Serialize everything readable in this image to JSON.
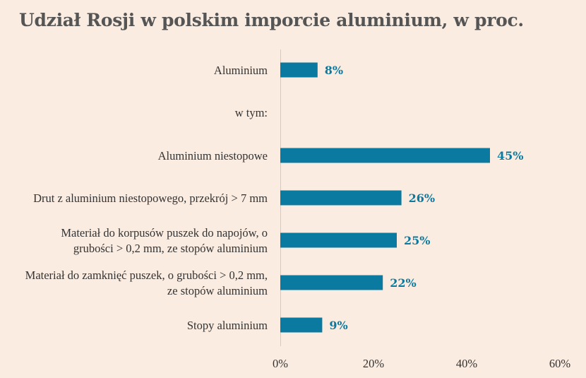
{
  "title": "Udział Rosji w polskim imporcie aluminium, w proc.",
  "colors": {
    "bar": "#0b7aa0",
    "label": "#0b7aa0",
    "background": "#fbece1",
    "axis": "#cccccc"
  },
  "chart_data": {
    "type": "bar",
    "orientation": "horizontal",
    "title": "Udział Rosji w polskim imporcie aluminium, w proc.",
    "xlim": [
      0,
      60
    ],
    "x_ticks": [
      "0%",
      "20%",
      "40%",
      "60%"
    ],
    "x_tick_values": [
      0,
      20,
      40,
      60
    ],
    "grid": false,
    "categories": [
      {
        "lines": [
          "Aluminium"
        ],
        "value": 8,
        "label": "8%"
      },
      {
        "lines": [
          "w tym:"
        ],
        "value": null,
        "label": ""
      },
      {
        "lines": [
          "Aluminium niestopowe"
        ],
        "value": 45,
        "label": "45%"
      },
      {
        "lines": [
          "Drut z aluminium niestopowego, przekrój > 7 mm"
        ],
        "value": 26,
        "label": "26%"
      },
      {
        "lines": [
          "Materiał do korpusów puszek do napojów, o",
          "grubości > 0,2 mm, ze stopów aluminium"
        ],
        "value": 25,
        "label": "25%"
      },
      {
        "lines": [
          "Materiał do zamknięć puszek, o grubości > 0,2 mm,",
          "ze stopów aluminium"
        ],
        "value": 22,
        "label": "22%"
      },
      {
        "lines": [
          "Stopy aluminium"
        ],
        "value": 9,
        "label": "9%"
      }
    ]
  }
}
